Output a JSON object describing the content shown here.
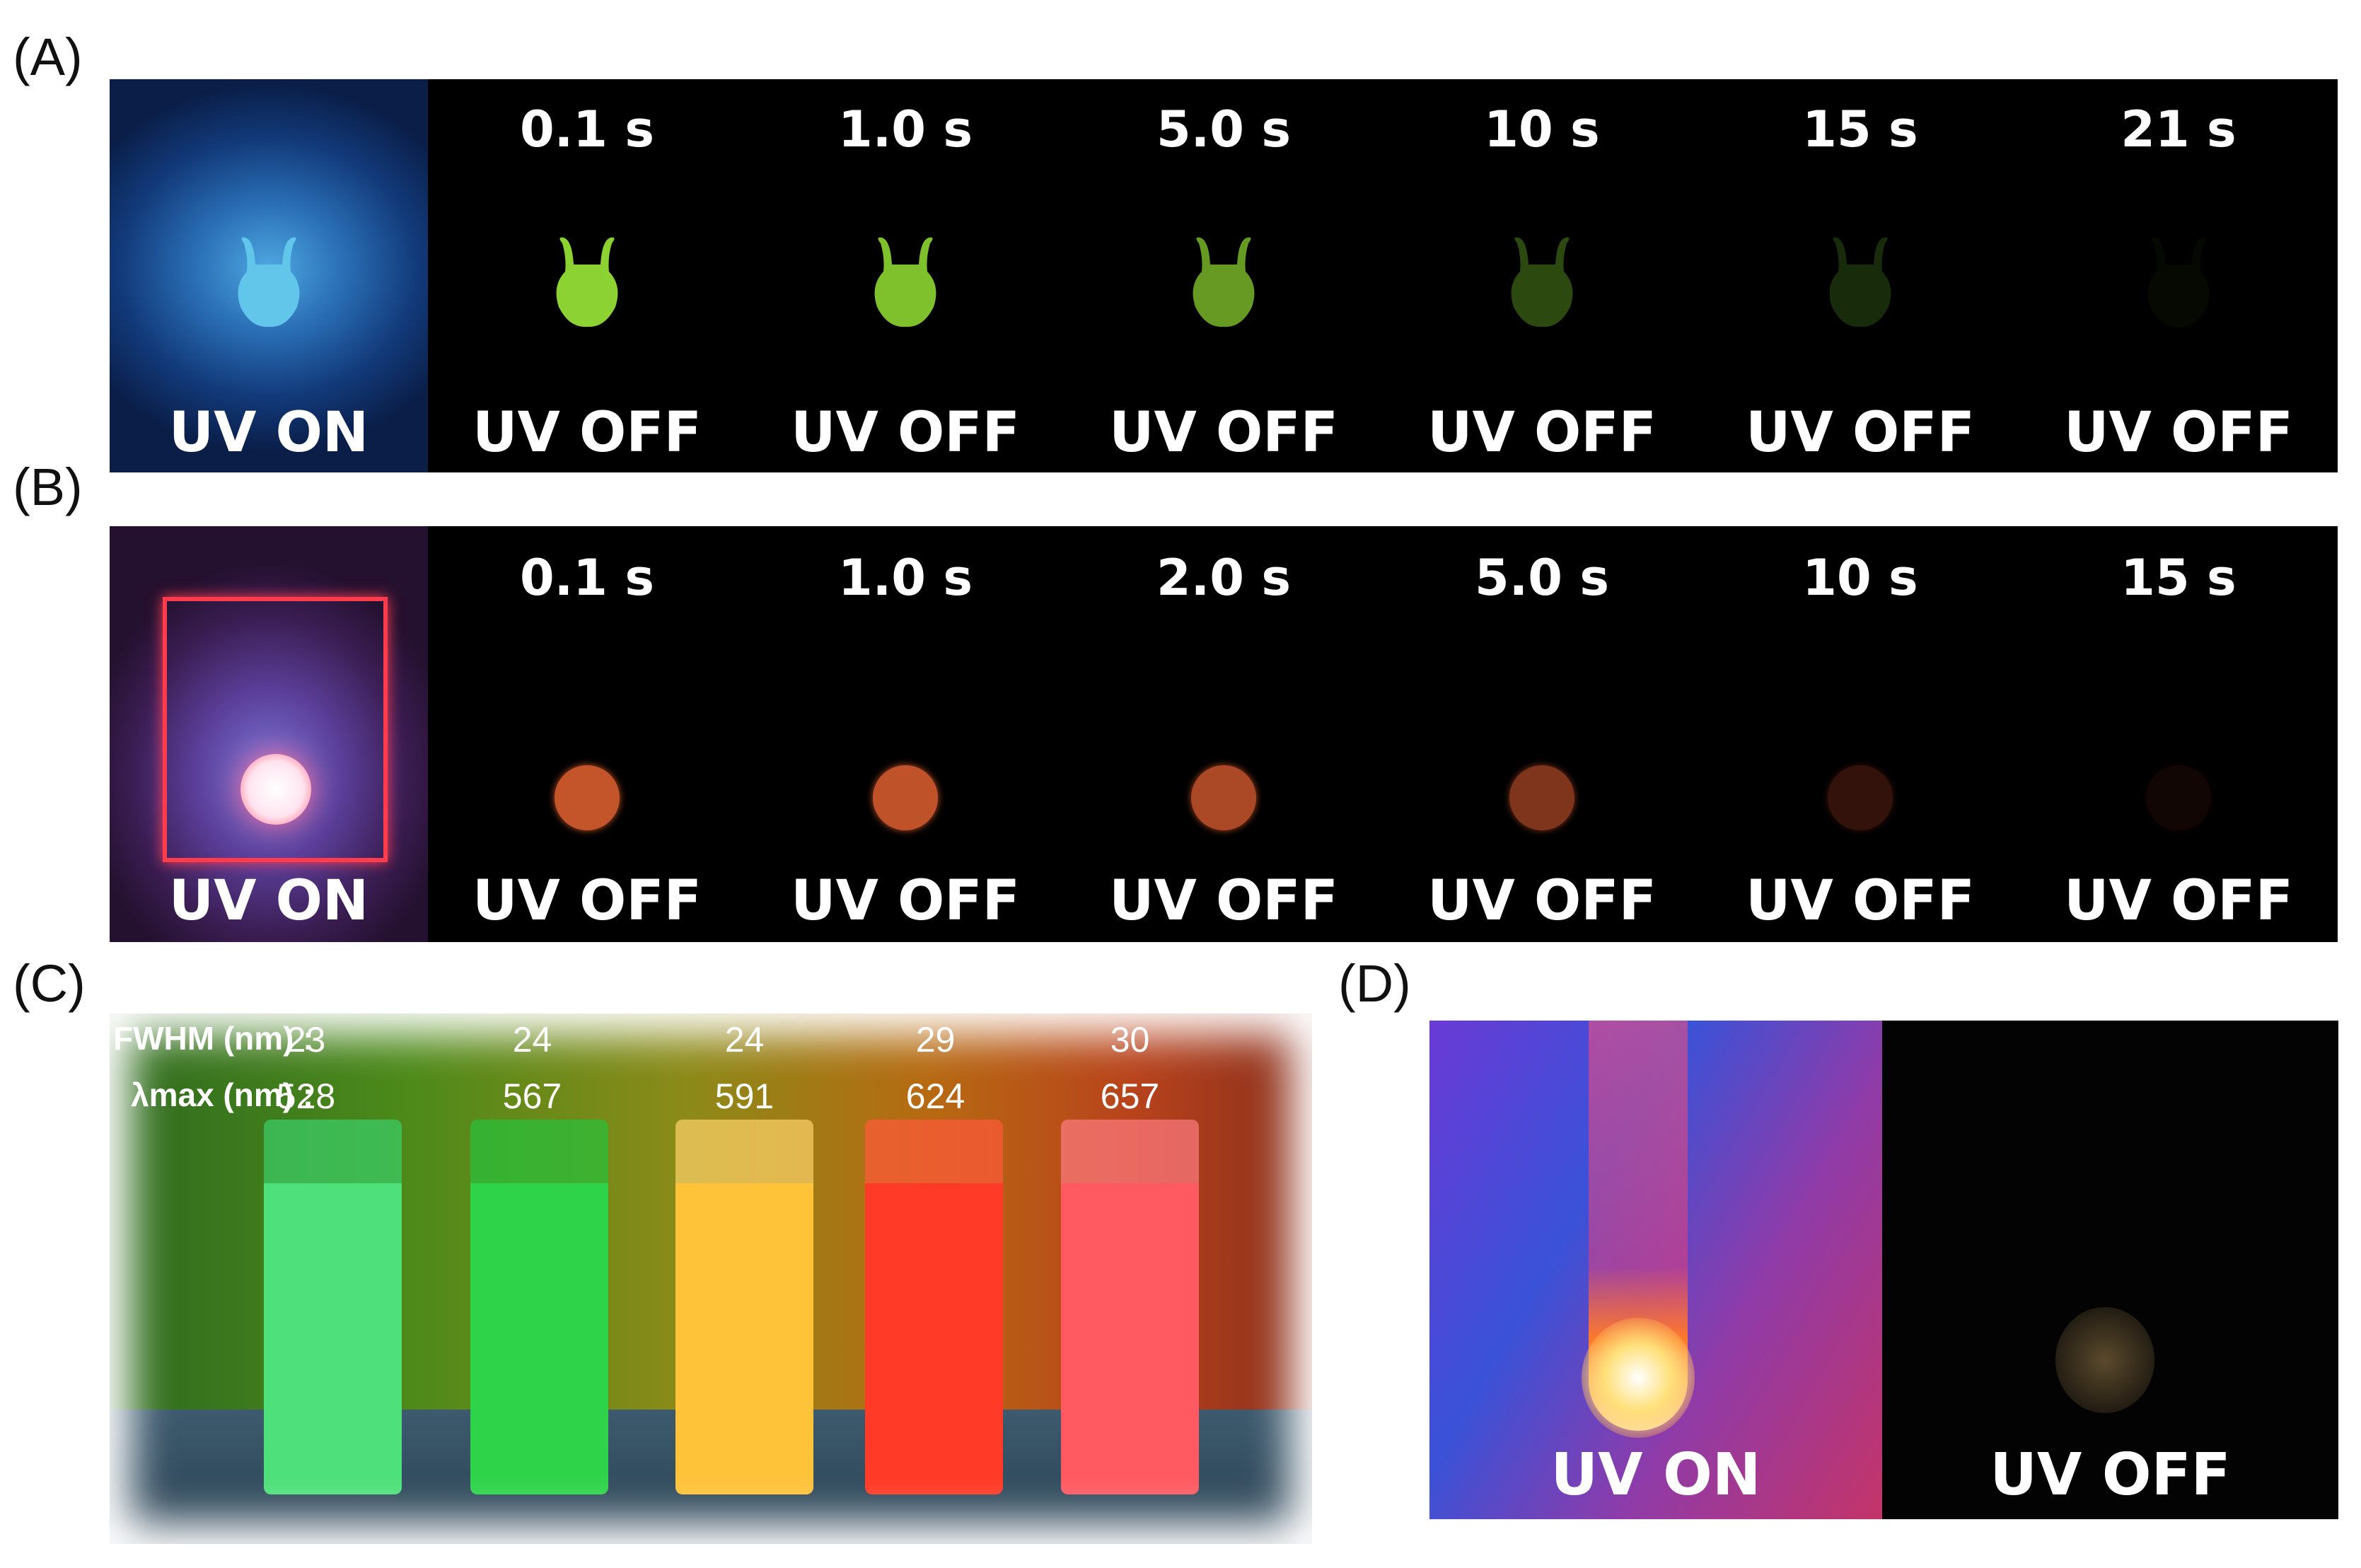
{
  "panels": {
    "a": {
      "label": "(A)",
      "frames": [
        {
          "time": "",
          "status": "UV ON",
          "glow_color": "#62c6ea",
          "glow_opacity": 1
        },
        {
          "time": "0.1 s",
          "status": "UV OFF",
          "glow_color": "#8cd233",
          "glow_opacity": 1
        },
        {
          "time": "1.0 s",
          "status": "UV OFF",
          "glow_color": "#86cb30",
          "glow_opacity": 0.95
        },
        {
          "time": "5.0 s",
          "status": "UV OFF",
          "glow_color": "#78b62a",
          "glow_opacity": 0.85
        },
        {
          "time": "10 s",
          "status": "UV OFF",
          "glow_color": "#3f6a18",
          "glow_opacity": 0.7
        },
        {
          "time": "15 s",
          "status": "UV OFF",
          "glow_color": "#2d4f13",
          "glow_opacity": 0.55
        },
        {
          "time": "21 s",
          "status": "UV OFF",
          "glow_color": "#0e1707",
          "glow_opacity": 0.4
        }
      ]
    },
    "b": {
      "label": "(B)",
      "frames": [
        {
          "time": "",
          "status": "UV ON",
          "glow_color": "#ffffff",
          "glow_opacity": 1
        },
        {
          "time": "0.1 s",
          "status": "UV OFF",
          "glow_color": "#c4552a",
          "glow_opacity": 1
        },
        {
          "time": "1.0 s",
          "status": "UV OFF",
          "glow_color": "#c0522a",
          "glow_opacity": 1
        },
        {
          "time": "2.0 s",
          "status": "UV OFF",
          "glow_color": "#b54c28",
          "glow_opacity": 0.95
        },
        {
          "time": "5.0 s",
          "status": "UV OFF",
          "glow_color": "#953f22",
          "glow_opacity": 0.85
        },
        {
          "time": "10 s",
          "status": "UV OFF",
          "glow_color": "#4a1b12",
          "glow_opacity": 0.7
        },
        {
          "time": "15 s",
          "status": "UV OFF",
          "glow_color": "#1d0a08",
          "glow_opacity": 0.6
        }
      ]
    },
    "c": {
      "label": "(C)",
      "fwhm_label": "FWHM (nm) :",
      "lambda_label": "λmax (nm) :",
      "vials": [
        {
          "fwhm": "23",
          "lambda": "528",
          "color": "#4ee07a",
          "cap_color": "#3ad06a"
        },
        {
          "fwhm": "24",
          "lambda": "567",
          "color": "#2fd34a",
          "cap_color": "#26c23c"
        },
        {
          "fwhm": "24",
          "lambda": "591",
          "color": "#ffc33a",
          "cap_color": "#ffd36a"
        },
        {
          "fwhm": "29",
          "lambda": "624",
          "color": "#ff3a26",
          "cap_color": "#ff5a3a"
        },
        {
          "fwhm": "30",
          "lambda": "657",
          "color": "#ff5a62",
          "cap_color": "#ff7a80"
        }
      ]
    },
    "d": {
      "label": "(D)",
      "on_status": "UV ON",
      "off_status": "UV OFF"
    }
  }
}
